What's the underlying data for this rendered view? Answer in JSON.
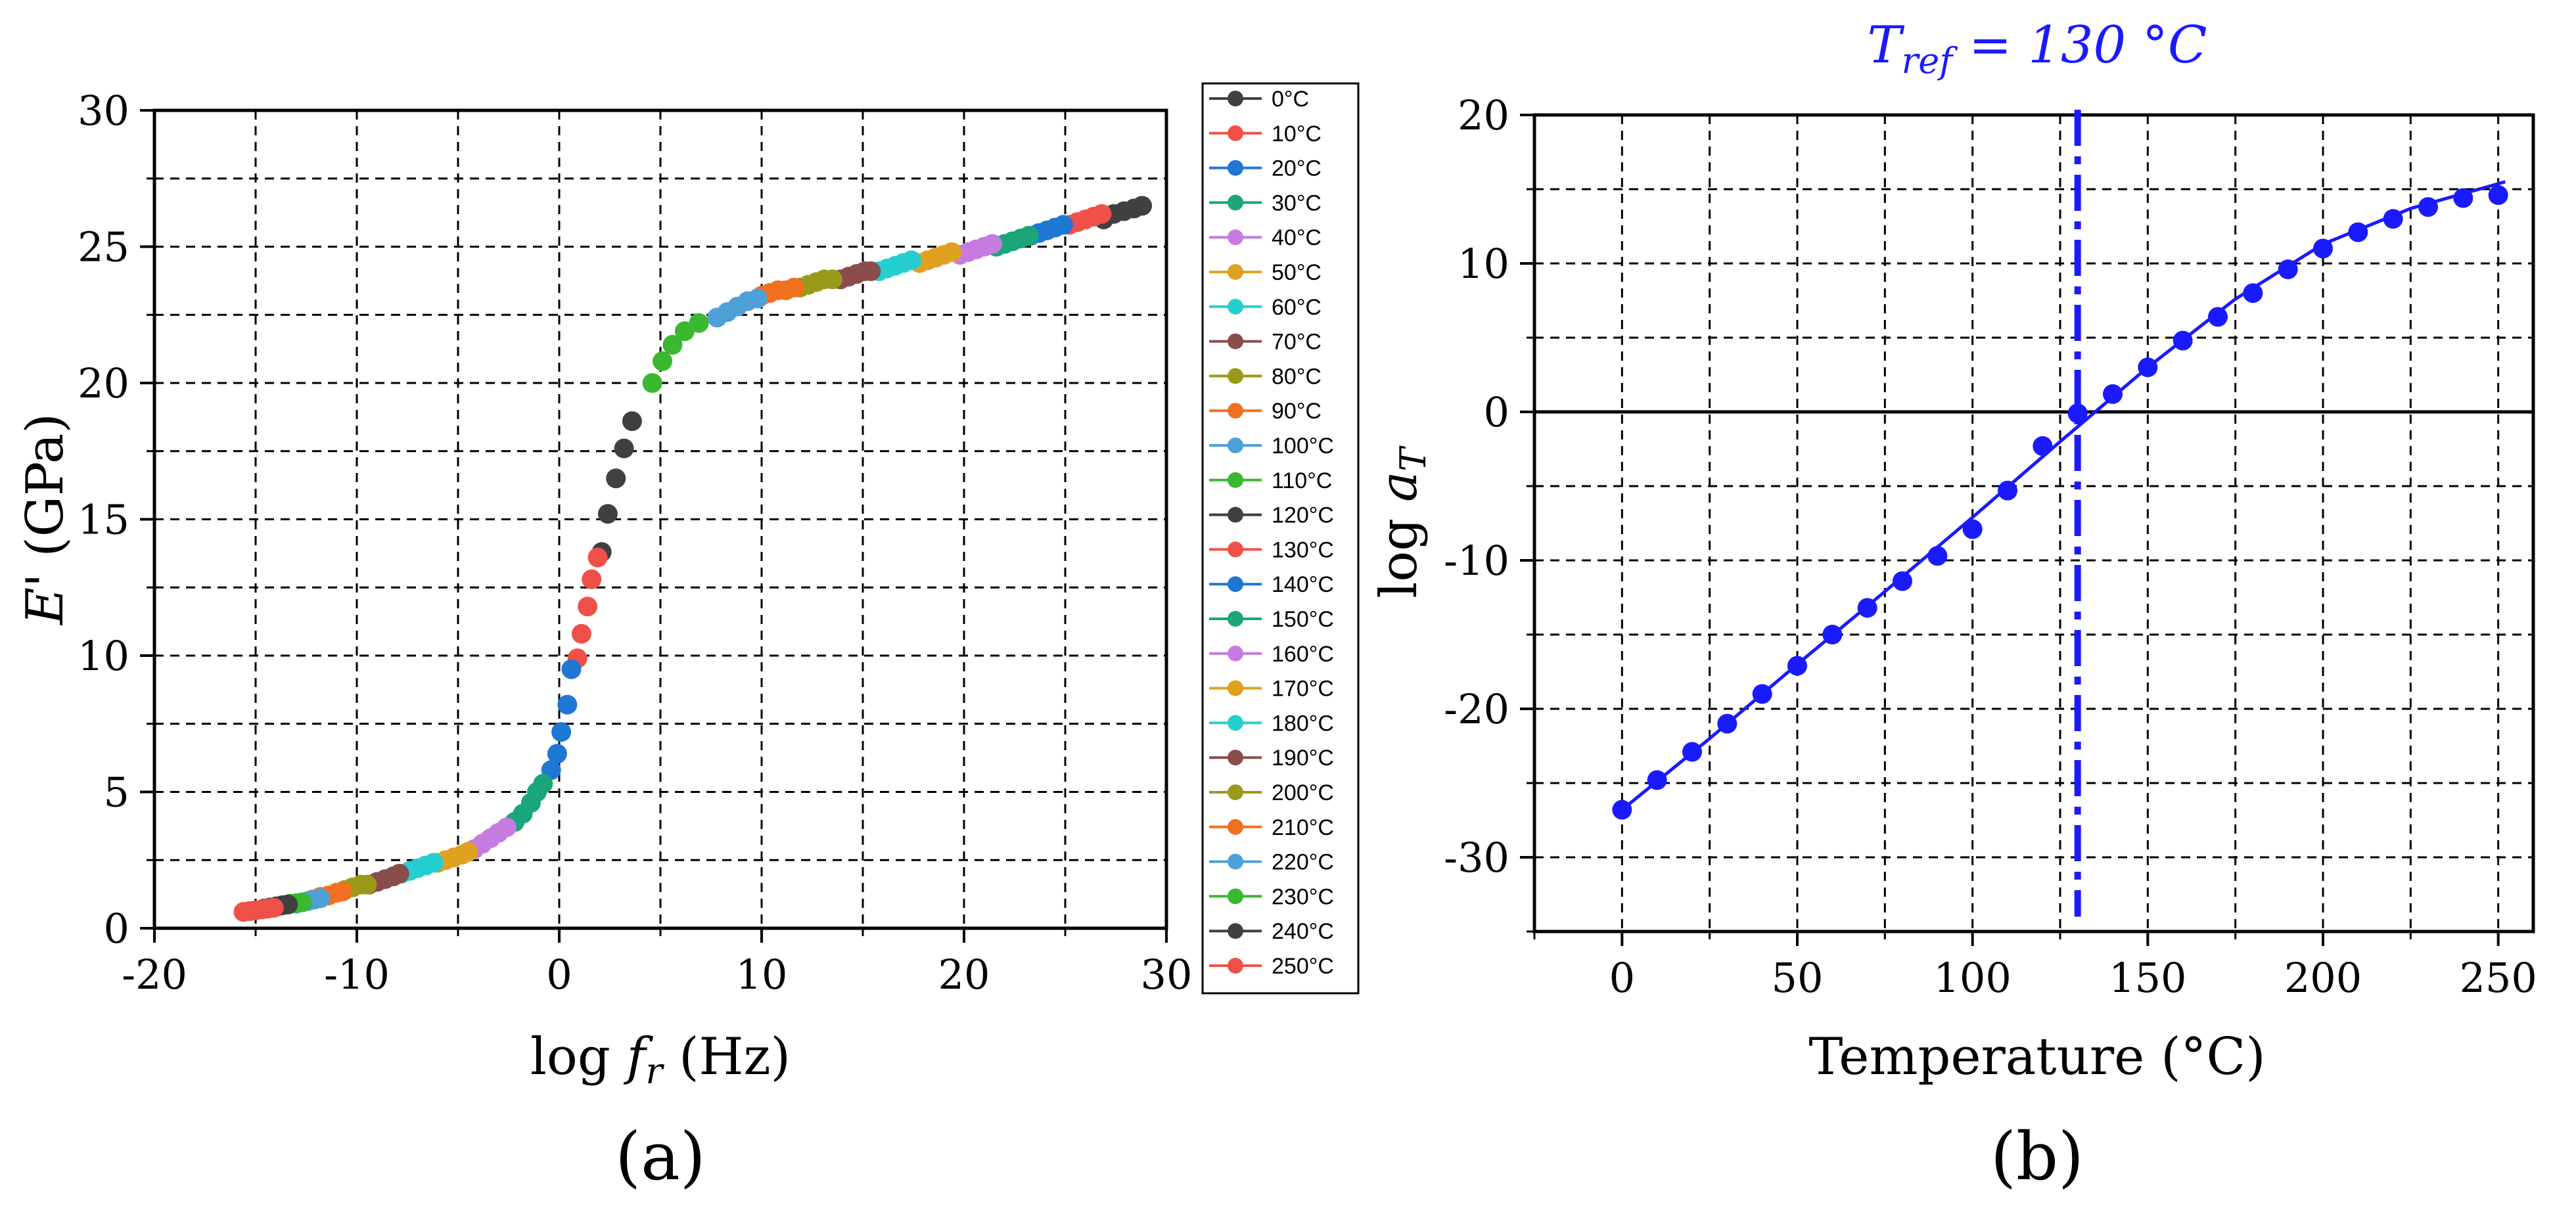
{
  "chart_data": [
    {
      "type": "scatter",
      "panel_label": "(a)",
      "xlabel_main": "log",
      "xlabel_var": "f",
      "xlabel_sub": "r",
      "xlabel_unit": "(Hz)",
      "ylabel_var": "E'",
      "ylabel_unit": "(GPa)",
      "xlim": [
        -20,
        30
      ],
      "ylim": [
        0,
        30
      ],
      "xticks": [
        "-20",
        "-10",
        "0",
        "10",
        "20",
        "30"
      ],
      "yticks": [
        "0",
        "5",
        "10",
        "15",
        "20",
        "25",
        "30"
      ],
      "grid": true,
      "legend_position": "right",
      "series": [
        {
          "name": "0°C",
          "color": "#404040",
          "points": [
            [
              26.9,
              26.0
            ],
            [
              27.4,
              26.2
            ],
            [
              27.9,
              26.3
            ],
            [
              28.4,
              26.4
            ],
            [
              28.8,
              26.5
            ]
          ]
        },
        {
          "name": "10°C",
          "color": "#f0504a",
          "points": [
            [
              25.2,
              25.8
            ],
            [
              25.6,
              25.9
            ],
            [
              26.0,
              26.0
            ],
            [
              26.4,
              26.1
            ],
            [
              26.8,
              26.2
            ]
          ]
        },
        {
          "name": "20°C",
          "color": "#1f77d4",
          "points": [
            [
              23.3,
              25.4
            ],
            [
              23.7,
              25.5
            ],
            [
              24.1,
              25.6
            ],
            [
              24.5,
              25.7
            ],
            [
              24.9,
              25.8
            ]
          ]
        },
        {
          "name": "30°C",
          "color": "#1aa57a",
          "points": [
            [
              21.6,
              25.0
            ],
            [
              22.0,
              25.1
            ],
            [
              22.4,
              25.2
            ],
            [
              22.8,
              25.3
            ],
            [
              23.2,
              25.4
            ]
          ]
        },
        {
          "name": "40°C",
          "color": "#c67be0",
          "points": [
            [
              19.8,
              24.7
            ],
            [
              20.2,
              24.8
            ],
            [
              20.6,
              24.9
            ],
            [
              21.0,
              25.0
            ],
            [
              21.4,
              25.1
            ]
          ]
        },
        {
          "name": "50°C",
          "color": "#e0a020",
          "points": [
            [
              17.8,
              24.4
            ],
            [
              18.2,
              24.5
            ],
            [
              18.6,
              24.6
            ],
            [
              19.0,
              24.7
            ],
            [
              19.4,
              24.8
            ]
          ]
        },
        {
          "name": "60°C",
          "color": "#25cfd0",
          "points": [
            [
              15.8,
              24.1
            ],
            [
              16.2,
              24.2
            ],
            [
              16.6,
              24.3
            ],
            [
              17.0,
              24.4
            ],
            [
              17.4,
              24.5
            ]
          ]
        },
        {
          "name": "70°C",
          "color": "#8b4c4c",
          "points": [
            [
              13.9,
              23.8
            ],
            [
              14.3,
              23.9
            ],
            [
              14.7,
              24.0
            ],
            [
              15.1,
              24.1
            ],
            [
              15.4,
              24.1
            ]
          ]
        },
        {
          "name": "80°C",
          "color": "#9a9a1a",
          "points": [
            [
              11.9,
              23.5
            ],
            [
              12.3,
              23.6
            ],
            [
              12.7,
              23.7
            ],
            [
              13.1,
              23.8
            ],
            [
              13.5,
              23.8
            ]
          ]
        },
        {
          "name": "90°C",
          "color": "#f07020",
          "points": [
            [
              10.0,
              23.2
            ],
            [
              10.4,
              23.3
            ],
            [
              10.8,
              23.4
            ],
            [
              11.2,
              23.4
            ],
            [
              11.6,
              23.5
            ]
          ]
        },
        {
          "name": "100°C",
          "color": "#4fa0d8",
          "points": [
            [
              7.8,
              22.4
            ],
            [
              8.3,
              22.6
            ],
            [
              8.8,
              22.8
            ],
            [
              9.3,
              23.0
            ],
            [
              9.8,
              23.1
            ]
          ]
        },
        {
          "name": "110°C",
          "color": "#3ab830",
          "points": [
            [
              4.6,
              20.0
            ],
            [
              5.1,
              20.8
            ],
            [
              5.6,
              21.4
            ],
            [
              6.2,
              21.9
            ],
            [
              6.9,
              22.2
            ]
          ]
        },
        {
          "name": "120°C",
          "color": "#404040",
          "points": [
            [
              2.1,
              13.8
            ],
            [
              2.4,
              15.2
            ],
            [
              2.8,
              16.5
            ],
            [
              3.2,
              17.6
            ],
            [
              3.6,
              18.6
            ]
          ]
        },
        {
          "name": "130°C",
          "color": "#f0504a",
          "points": [
            [
              0.9,
              9.9
            ],
            [
              1.1,
              10.8
            ],
            [
              1.4,
              11.8
            ],
            [
              1.6,
              12.8
            ],
            [
              1.9,
              13.6
            ]
          ]
        },
        {
          "name": "140°C",
          "color": "#1f77d4",
          "points": [
            [
              -0.4,
              5.8
            ],
            [
              -0.1,
              6.4
            ],
            [
              0.1,
              7.2
            ],
            [
              0.4,
              8.2
            ],
            [
              0.6,
              9.5
            ]
          ]
        },
        {
          "name": "150°C",
          "color": "#1aa57a",
          "points": [
            [
              -2.2,
              3.9
            ],
            [
              -1.8,
              4.2
            ],
            [
              -1.4,
              4.6
            ],
            [
              -1.1,
              5.0
            ],
            [
              -0.8,
              5.3
            ]
          ]
        },
        {
          "name": "160°C",
          "color": "#c67be0",
          "points": [
            [
              -4.2,
              2.9
            ],
            [
              -3.8,
              3.1
            ],
            [
              -3.4,
              3.3
            ],
            [
              -3.0,
              3.5
            ],
            [
              -2.6,
              3.7
            ]
          ]
        },
        {
          "name": "170°C",
          "color": "#e0a020",
          "points": [
            [
              -6.0,
              2.4
            ],
            [
              -5.6,
              2.5
            ],
            [
              -5.2,
              2.6
            ],
            [
              -4.8,
              2.7
            ],
            [
              -4.5,
              2.8
            ]
          ]
        },
        {
          "name": "180°C",
          "color": "#25cfd0",
          "points": [
            [
              -7.8,
              2.0
            ],
            [
              -7.4,
              2.1
            ],
            [
              -7.0,
              2.2
            ],
            [
              -6.6,
              2.3
            ],
            [
              -6.2,
              2.4
            ]
          ]
        },
        {
          "name": "190°C",
          "color": "#8b4c4c",
          "points": [
            [
              -9.4,
              1.6
            ],
            [
              -9.0,
              1.7
            ],
            [
              -8.6,
              1.8
            ],
            [
              -8.2,
              1.9
            ],
            [
              -7.9,
              2.0
            ]
          ]
        },
        {
          "name": "200°C",
          "color": "#9a9a1a",
          "points": [
            [
              -11.0,
              1.3
            ],
            [
              -10.6,
              1.4
            ],
            [
              -10.2,
              1.5
            ],
            [
              -9.8,
              1.6
            ],
            [
              -9.5,
              1.6
            ]
          ]
        },
        {
          "name": "210°C",
          "color": "#f07020",
          "points": [
            [
              -12.2,
              1.05
            ],
            [
              -11.8,
              1.15
            ],
            [
              -11.4,
              1.2
            ],
            [
              -11.0,
              1.3
            ],
            [
              -10.7,
              1.35
            ]
          ]
        },
        {
          "name": "220°C",
          "color": "#4fa0d8",
          "points": [
            [
              -13.0,
              0.9
            ],
            [
              -12.7,
              0.95
            ],
            [
              -12.4,
              1.0
            ],
            [
              -12.1,
              1.05
            ],
            [
              -11.8,
              1.1
            ]
          ]
        },
        {
          "name": "230°C",
          "color": "#3ab830",
          "points": [
            [
              -13.9,
              0.8
            ],
            [
              -13.6,
              0.85
            ],
            [
              -13.3,
              0.9
            ],
            [
              -13.0,
              0.92
            ],
            [
              -12.7,
              0.95
            ]
          ]
        },
        {
          "name": "240°C",
          "color": "#404040",
          "points": [
            [
              -14.6,
              0.72
            ],
            [
              -14.3,
              0.76
            ],
            [
              -14.0,
              0.8
            ],
            [
              -13.7,
              0.84
            ],
            [
              -13.4,
              0.87
            ]
          ]
        },
        {
          "name": "250°C",
          "color": "#f0504a",
          "points": [
            [
              -15.6,
              0.6
            ],
            [
              -15.3,
              0.63
            ],
            [
              -15.0,
              0.66
            ],
            [
              -14.7,
              0.69
            ],
            [
              -14.4,
              0.72
            ],
            [
              -14.1,
              0.75
            ]
          ]
        }
      ]
    },
    {
      "type": "scatter",
      "panel_label": "(b)",
      "title_var": "T",
      "title_sub": "ref",
      "title_rest": " = 130 °C",
      "xlabel": "Temperature (°C)",
      "ylabel_main": "log",
      "ylabel_var": "a",
      "ylabel_sub": "T",
      "xlim": [
        -25,
        260
      ],
      "ylim": [
        -35,
        20
      ],
      "xticks": [
        "0",
        "50",
        "100",
        "150",
        "200",
        "250"
      ],
      "yticks": [
        "-30",
        "-20",
        "-10",
        "0",
        "10",
        "20"
      ],
      "grid": true,
      "reference_line_x": 130,
      "color": "#1a1aff",
      "points": [
        [
          0,
          -26.8
        ],
        [
          10,
          -24.8
        ],
        [
          20,
          -22.9
        ],
        [
          30,
          -21.0
        ],
        [
          40,
          -19.0
        ],
        [
          50,
          -17.1
        ],
        [
          60,
          -15.0
        ],
        [
          70,
          -13.2
        ],
        [
          80,
          -11.4
        ],
        [
          90,
          -9.7
        ],
        [
          100,
          -7.9
        ],
        [
          110,
          -5.3
        ],
        [
          120,
          -2.3
        ],
        [
          130,
          -0.1
        ],
        [
          140,
          1.2
        ],
        [
          150,
          3.0
        ],
        [
          160,
          4.8
        ],
        [
          170,
          6.4
        ],
        [
          180,
          8.0
        ],
        [
          190,
          9.6
        ],
        [
          200,
          11.0
        ],
        [
          210,
          12.1
        ],
        [
          220,
          13.0
        ],
        [
          230,
          13.8
        ],
        [
          240,
          14.4
        ],
        [
          250,
          14.6
        ]
      ],
      "fit": [
        [
          0,
          -26.8
        ],
        [
          25,
          -22.0
        ],
        [
          50,
          -17.0
        ],
        [
          75,
          -12.1
        ],
        [
          100,
          -7.1
        ],
        [
          125,
          -2.0
        ],
        [
          150,
          3.0
        ],
        [
          175,
          7.6
        ],
        [
          200,
          11.3
        ],
        [
          225,
          13.7
        ],
        [
          252,
          15.5
        ]
      ]
    }
  ]
}
